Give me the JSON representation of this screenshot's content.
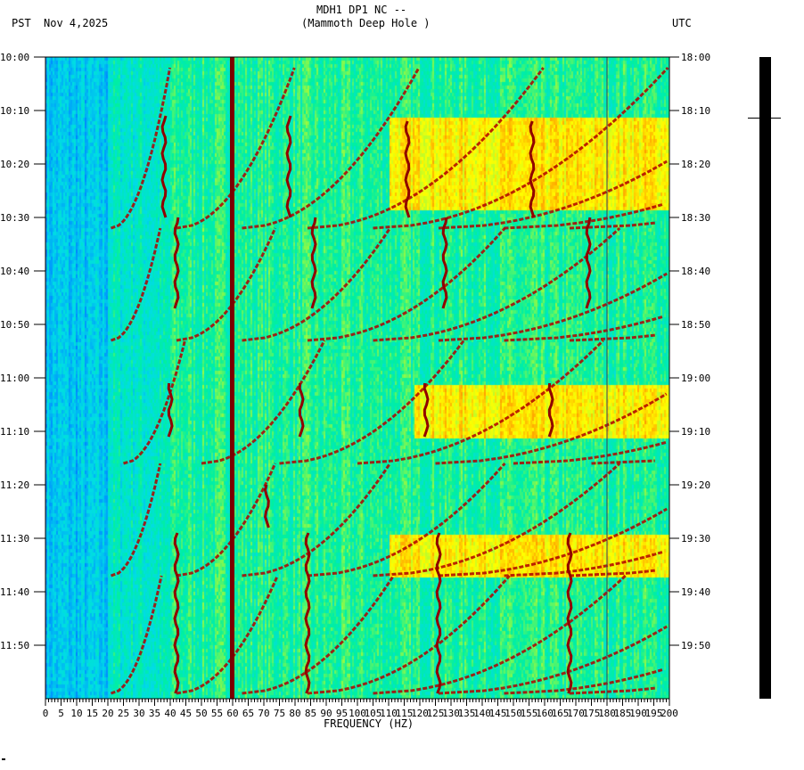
{
  "header": {
    "title": "MDH1 DP1 NC --",
    "subtitle": "(Mammoth Deep Hole )",
    "left_tz": "PST",
    "date": "Nov 4,2025",
    "right_tz": "UTC"
  },
  "chart_data": {
    "type": "heatmap",
    "title": "MDH1 DP1 NC --",
    "subtitle": "(Mammoth Deep Hole )",
    "xlabel": "FREQUENCY (HZ)",
    "xlim": [
      0,
      200
    ],
    "x_ticks": [
      "0",
      "5",
      "10",
      "15",
      "20",
      "25",
      "30",
      "35",
      "40",
      "45",
      "50",
      "55",
      "60",
      "65",
      "70",
      "75",
      "80",
      "85",
      "90",
      "95",
      "100",
      "105",
      "110",
      "115",
      "120",
      "125",
      "130",
      "135",
      "140",
      "145",
      "150",
      "155",
      "160",
      "165",
      "170",
      "175",
      "180",
      "185",
      "190",
      "195",
      "200"
    ],
    "time_range_minutes": [
      0,
      120
    ],
    "y_ticks_left": [
      "10:00",
      "10:10",
      "10:20",
      "10:30",
      "10:40",
      "10:50",
      "11:00",
      "11:10",
      "11:20",
      "11:30",
      "11:40",
      "11:50"
    ],
    "y_ticks_right": [
      "18:00",
      "18:10",
      "18:20",
      "18:30",
      "18:40",
      "18:50",
      "19:00",
      "19:10",
      "19:20",
      "19:30",
      "19:40",
      "19:50"
    ],
    "colors": {
      "low": "#0050ff",
      "mid": "#00e0e0",
      "high": "#ffff00",
      "peak": "#8b0000"
    },
    "constant_lines_hz": [
      60,
      180
    ],
    "glide_cycles": [
      {
        "end_minute": 32,
        "base_hz": 21,
        "duration_minutes": 30
      },
      {
        "end_minute": 53,
        "base_hz": 21,
        "duration_minutes": 21
      },
      {
        "end_minute": 76,
        "base_hz": 25,
        "duration_minutes": 23
      },
      {
        "end_minute": 97,
        "base_hz": 21,
        "duration_minutes": 21
      },
      {
        "end_minute": 119,
        "base_hz": 21,
        "duration_minutes": 22
      }
    ],
    "tremor_segments": [
      [
        38,
        11,
        30
      ],
      [
        78,
        11,
        30
      ],
      [
        116,
        12,
        30
      ],
      [
        156,
        12,
        30
      ],
      [
        42,
        30,
        47
      ],
      [
        86,
        30,
        47
      ],
      [
        128,
        30,
        47
      ],
      [
        174,
        30,
        47
      ],
      [
        40,
        61,
        71
      ],
      [
        82,
        61,
        71
      ],
      [
        122,
        61,
        71
      ],
      [
        162,
        61,
        71
      ],
      [
        71,
        80,
        88
      ],
      [
        42,
        89,
        119
      ],
      [
        84,
        89,
        119
      ],
      [
        126,
        89,
        119
      ],
      [
        168,
        89,
        119
      ]
    ],
    "bright_bands": [
      [
        11,
        28,
        110,
        200
      ],
      [
        61,
        71,
        118,
        200
      ],
      [
        89,
        97,
        110,
        200
      ]
    ]
  }
}
